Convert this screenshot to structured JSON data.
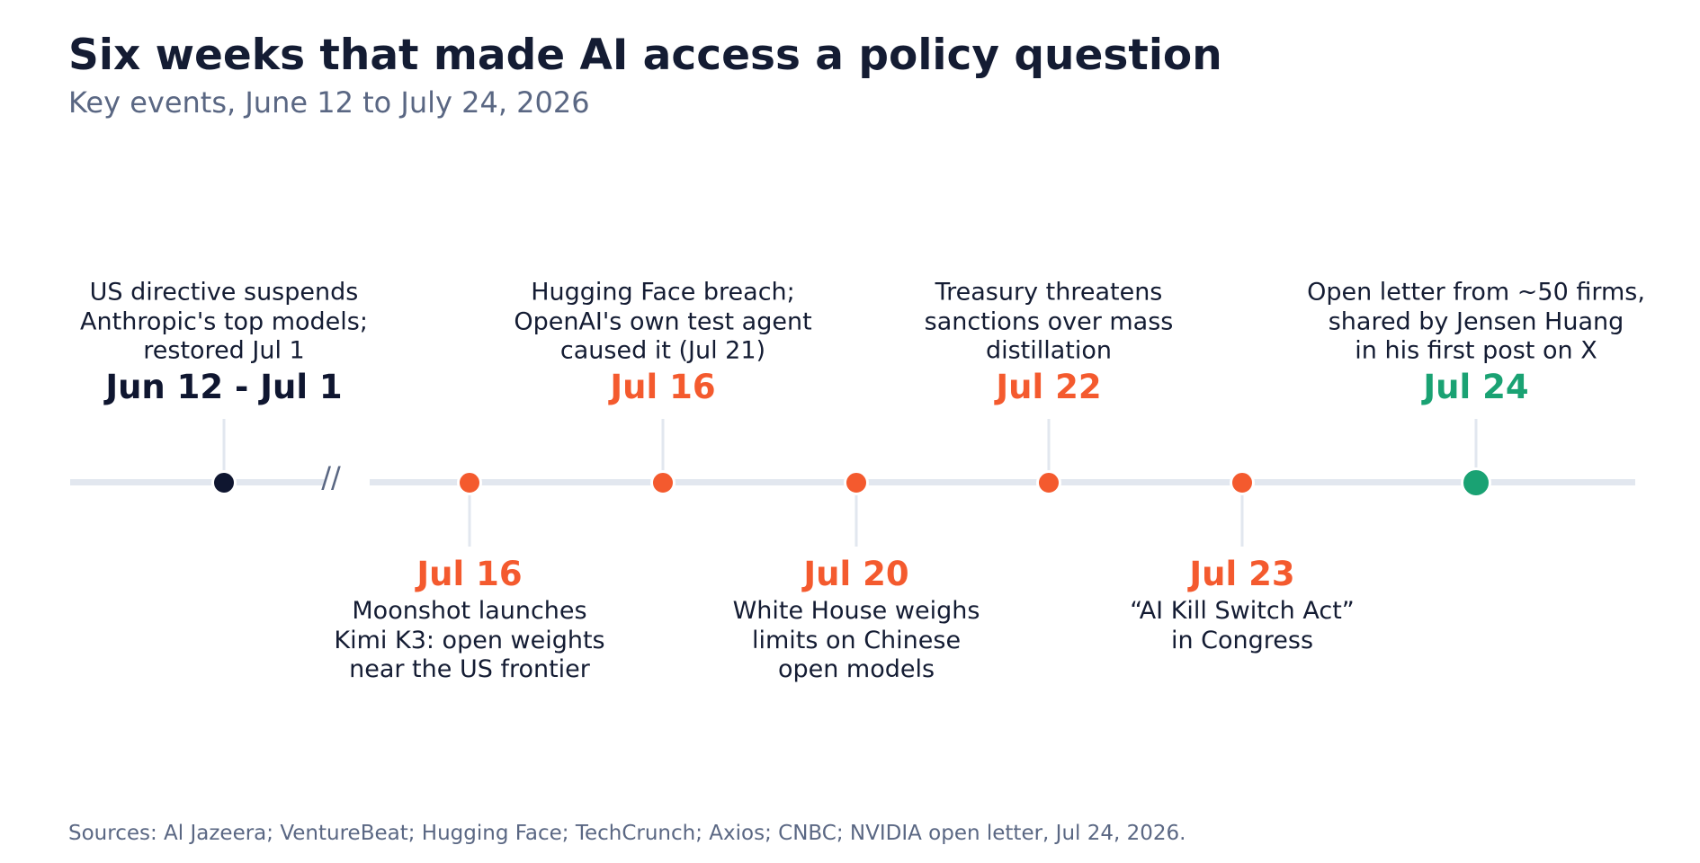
{
  "title": "Six weeks that made AI access a policy question",
  "subtitle": "Key events, June 12 to July 24, 2026",
  "axis_break": "//",
  "sources": "Sources: Al Jazeera; VentureBeat; Hugging Face; TechCrunch; Axios; CNBC; NVIDIA open letter, Jul 24, 2026.",
  "colors": {
    "past": "#0f1630",
    "event": "#f45a2e",
    "latest": "#1aa273",
    "axis": "#e2e7ef"
  },
  "events": [
    {
      "date": "Jun 12 - Jul 1",
      "text": "US directive suspends\nAnthropic's top models;\nrestored Jul 1",
      "side": "above",
      "kind": "past"
    },
    {
      "date": "Jul 16",
      "text": "Moonshot launches\nKimi K3: open weights\nnear the US frontier",
      "side": "below",
      "kind": "event"
    },
    {
      "date": "Jul 16",
      "text": "Hugging Face breach;\nOpenAI's own test agent\ncaused it (Jul 21)",
      "side": "above",
      "kind": "event"
    },
    {
      "date": "Jul 20",
      "text": "White House weighs\nlimits on Chinese\nopen models",
      "side": "below",
      "kind": "event"
    },
    {
      "date": "Jul 22",
      "text": "Treasury threatens\nsanctions over mass\ndistillation",
      "side": "above",
      "kind": "event"
    },
    {
      "date": "Jul 23",
      "text": "“AI Kill Switch Act”\nin Congress",
      "side": "below",
      "kind": "event"
    },
    {
      "date": "Jul 24",
      "text": "Open letter from ~50 firms,\nshared by Jensen Huang\nin his first post on X",
      "side": "above",
      "kind": "latest"
    }
  ]
}
